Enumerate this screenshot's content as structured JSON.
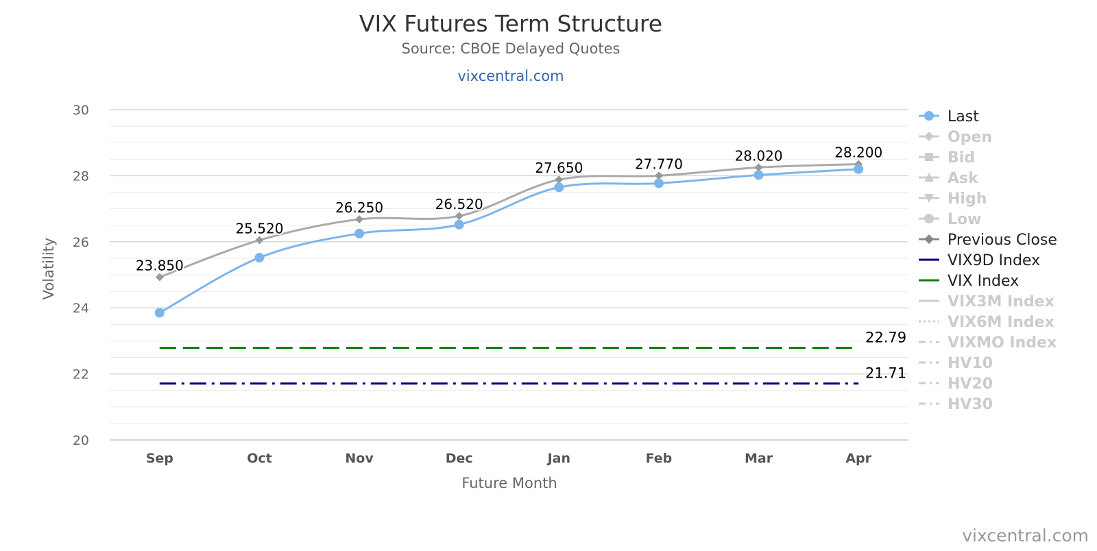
{
  "chart_data": {
    "type": "line",
    "title": "VIX Futures Term Structure",
    "subtitle": "Source: CBOE Delayed Quotes",
    "site_link": "vixcentral.com",
    "credits": "vixcentral.com",
    "xlabel": "Future Month",
    "ylabel": "Volatility",
    "categories": [
      "Sep",
      "Oct",
      "Nov",
      "Dec",
      "Jan",
      "Feb",
      "Mar",
      "Apr"
    ],
    "ylim": [
      20,
      30
    ],
    "yticks": [
      20,
      22,
      24,
      26,
      28,
      30
    ],
    "grid": true,
    "legend_position": "right",
    "series": [
      {
        "name": "Last",
        "values": [
          23.85,
          25.52,
          26.25,
          26.52,
          27.65,
          27.77,
          28.02,
          28.2
        ],
        "labels": [
          "23.850",
          "25.520",
          "26.250",
          "26.520",
          "27.650",
          "27.770",
          "28.020",
          "28.200"
        ],
        "color": "#7cb5ec",
        "marker": "circle"
      },
      {
        "name": "Previous Close",
        "values": [
          24.93,
          26.05,
          26.68,
          26.78,
          27.88,
          28.0,
          28.25,
          28.35
        ],
        "color": "#aaaaaa",
        "marker": "diamond"
      },
      {
        "name": "VIX9D Index",
        "value": 21.71,
        "label": "21.71",
        "color": "#000080",
        "dash": "dashdot"
      },
      {
        "name": "VIX Index",
        "value": 22.79,
        "label": "22.79",
        "color": "#008000",
        "dash": "dash"
      }
    ],
    "legend": [
      {
        "name": "Last",
        "symbol": "circle",
        "color": "#7cb5ec",
        "active": true
      },
      {
        "name": "Open",
        "symbol": "diamond",
        "color": "#cccccc",
        "active": false
      },
      {
        "name": "Bid",
        "symbol": "square",
        "color": "#cccccc",
        "active": false
      },
      {
        "name": "Ask",
        "symbol": "triangle",
        "color": "#cccccc",
        "active": false
      },
      {
        "name": "High",
        "symbol": "triangle-down",
        "color": "#cccccc",
        "active": false
      },
      {
        "name": "Low",
        "symbol": "circle",
        "color": "#cccccc",
        "active": false
      },
      {
        "name": "Previous Close",
        "symbol": "diamond",
        "color": "#888888",
        "active": true
      },
      {
        "name": "VIX9D Index",
        "symbol": "line",
        "color": "#000080",
        "active": true
      },
      {
        "name": "VIX Index",
        "symbol": "line",
        "color": "#008000",
        "active": true
      },
      {
        "name": "VIX3M Index",
        "symbol": "line",
        "color": "#cccccc",
        "active": false
      },
      {
        "name": "VIX6M Index",
        "symbol": "dotted",
        "color": "#cccccc",
        "active": false
      },
      {
        "name": "VIXMO Index",
        "symbol": "dashdot",
        "color": "#cccccc",
        "active": false
      },
      {
        "name": "HV10",
        "symbol": "dashdot",
        "color": "#cccccc",
        "active": false
      },
      {
        "name": "HV20",
        "symbol": "dashdot",
        "color": "#cccccc",
        "active": false
      },
      {
        "name": "HV30",
        "symbol": "dashdot",
        "color": "#cccccc",
        "active": false
      }
    ]
  }
}
